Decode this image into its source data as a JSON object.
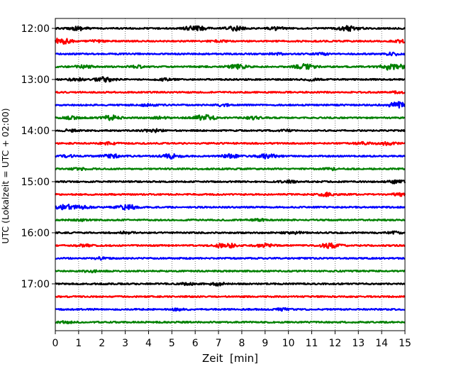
{
  "chart_data": {
    "type": "line",
    "title": "",
    "xlabel": "Zeit  [min]",
    "ylabel": "UTC (Lokalzeit = UTC + 02:00)",
    "xlim": [
      0,
      15
    ],
    "x_ticks": [
      0,
      1,
      2,
      3,
      4,
      5,
      6,
      7,
      8,
      9,
      10,
      11,
      12,
      13,
      14,
      15
    ],
    "x_tick_labels": [
      "0",
      "1",
      "2",
      "3",
      "4",
      "5",
      "6",
      "7",
      "8",
      "9",
      "10",
      "11",
      "12",
      "13",
      "14",
      "15"
    ],
    "y_tick_labels": [
      "12:00",
      "13:00",
      "14:00",
      "15:00",
      "16:00",
      "17:00"
    ],
    "y_tick_rows": [
      0,
      4,
      8,
      12,
      16,
      20
    ],
    "grid": "vertical dotted at each minute",
    "color_cycle": [
      "#000000",
      "#ff0000",
      "#0000ff",
      "#008000"
    ],
    "rows": [
      {
        "start": "12:00",
        "color": "#000000",
        "bursts": [
          {
            "t": 1.0,
            "amp": 0.7
          },
          {
            "t": 6.0,
            "amp": 1.0
          },
          {
            "t": 7.7,
            "amp": 0.8
          },
          {
            "t": 9.5,
            "amp": 0.6
          },
          {
            "t": 12.6,
            "amp": 1.0
          }
        ]
      },
      {
        "start": "12:15",
        "color": "#ff0000",
        "bursts": [
          {
            "t": 0.2,
            "amp": 1.2
          },
          {
            "t": 1.8,
            "amp": 0.4
          },
          {
            "t": 7.0,
            "amp": 0.4
          },
          {
            "t": 14.8,
            "amp": 0.5
          }
        ]
      },
      {
        "start": "12:30",
        "color": "#0000ff",
        "bursts": [
          {
            "t": 9.5,
            "amp": 0.4
          },
          {
            "t": 11.5,
            "amp": 0.4
          },
          {
            "t": 14.5,
            "amp": 0.5
          }
        ]
      },
      {
        "start": "12:45",
        "color": "#008000",
        "bursts": [
          {
            "t": 1.2,
            "amp": 0.6
          },
          {
            "t": 3.5,
            "amp": 0.5
          },
          {
            "t": 7.8,
            "amp": 0.9
          },
          {
            "t": 10.7,
            "amp": 1.0
          },
          {
            "t": 14.5,
            "amp": 1.4
          }
        ]
      },
      {
        "start": "13:00",
        "color": "#000000",
        "bursts": [
          {
            "t": 0.9,
            "amp": 0.5
          },
          {
            "t": 2.1,
            "amp": 0.9
          },
          {
            "t": 4.7,
            "amp": 0.4
          },
          {
            "t": 11.0,
            "amp": 0.4
          }
        ]
      },
      {
        "start": "13:15",
        "color": "#ff0000",
        "bursts": [
          {
            "t": 14.8,
            "amp": 0.4
          }
        ]
      },
      {
        "start": "13:30",
        "color": "#0000ff",
        "bursts": [
          {
            "t": 4.0,
            "amp": 0.4
          },
          {
            "t": 7.2,
            "amp": 0.4
          },
          {
            "t": 14.7,
            "amp": 1.1
          }
        ]
      },
      {
        "start": "13:45",
        "color": "#008000",
        "bursts": [
          {
            "t": 0.7,
            "amp": 0.5
          },
          {
            "t": 2.4,
            "amp": 0.9
          },
          {
            "t": 4.5,
            "amp": 0.4
          },
          {
            "t": 6.4,
            "amp": 1.1
          },
          {
            "t": 8.5,
            "amp": 0.5
          }
        ]
      },
      {
        "start": "14:00",
        "color": "#000000",
        "bursts": [
          {
            "t": 0.6,
            "amp": 0.4
          },
          {
            "t": 4.2,
            "amp": 0.6
          },
          {
            "t": 9.8,
            "amp": 0.4
          }
        ]
      },
      {
        "start": "14:15",
        "color": "#ff0000",
        "bursts": [
          {
            "t": 2.3,
            "amp": 0.4
          },
          {
            "t": 13.2,
            "amp": 0.4
          },
          {
            "t": 14.2,
            "amp": 0.6
          }
        ]
      },
      {
        "start": "14:30",
        "color": "#0000ff",
        "bursts": [
          {
            "t": 0.5,
            "amp": 0.4
          },
          {
            "t": 2.4,
            "amp": 0.8
          },
          {
            "t": 5.0,
            "amp": 0.9
          },
          {
            "t": 7.5,
            "amp": 0.7
          },
          {
            "t": 9.1,
            "amp": 0.9
          }
        ]
      },
      {
        "start": "14:45",
        "color": "#008000",
        "bursts": [
          {
            "t": 1.0,
            "amp": 0.4
          },
          {
            "t": 11.8,
            "amp": 0.4
          }
        ]
      },
      {
        "start": "15:00",
        "color": "#000000",
        "bursts": [
          {
            "t": 10.0,
            "amp": 0.4
          },
          {
            "t": 14.7,
            "amp": 0.7
          }
        ]
      },
      {
        "start": "15:15",
        "color": "#ff0000",
        "bursts": [
          {
            "t": 11.6,
            "amp": 0.6
          },
          {
            "t": 14.8,
            "amp": 0.5
          }
        ]
      },
      {
        "start": "15:30",
        "color": "#0000ff",
        "bursts": [
          {
            "t": 0.4,
            "amp": 1.1
          },
          {
            "t": 1.2,
            "amp": 0.5
          },
          {
            "t": 3.1,
            "amp": 0.9
          }
        ]
      },
      {
        "start": "15:45",
        "color": "#008000",
        "bursts": [
          {
            "t": 1.0,
            "amp": 0.4
          },
          {
            "t": 8.7,
            "amp": 0.4
          }
        ]
      },
      {
        "start": "16:00",
        "color": "#000000",
        "bursts": [
          {
            "t": 3.0,
            "amp": 0.4
          },
          {
            "t": 10.2,
            "amp": 0.5
          },
          {
            "t": 14.6,
            "amp": 0.4
          }
        ]
      },
      {
        "start": "16:15",
        "color": "#ff0000",
        "bursts": [
          {
            "t": 1.2,
            "amp": 0.4
          },
          {
            "t": 7.3,
            "amp": 1.0
          },
          {
            "t": 9.0,
            "amp": 0.6
          },
          {
            "t": 11.8,
            "amp": 1.0
          }
        ]
      },
      {
        "start": "16:30",
        "color": "#0000ff",
        "bursts": [
          {
            "t": 2.0,
            "amp": 0.4
          }
        ]
      },
      {
        "start": "16:45",
        "color": "#008000",
        "bursts": [
          {
            "t": 1.5,
            "amp": 0.4
          }
        ]
      },
      {
        "start": "17:00",
        "color": "#000000",
        "bursts": [
          {
            "t": 5.7,
            "amp": 0.4
          },
          {
            "t": 7.0,
            "amp": 0.6
          }
        ]
      },
      {
        "start": "17:15",
        "color": "#ff0000",
        "bursts": []
      },
      {
        "start": "17:30",
        "color": "#0000ff",
        "bursts": [
          {
            "t": 5.3,
            "amp": 0.4
          },
          {
            "t": 9.8,
            "amp": 0.4
          }
        ]
      },
      {
        "start": "17:45",
        "color": "#008000",
        "bursts": [
          {
            "t": 0.5,
            "amp": 0.4
          }
        ]
      }
    ]
  }
}
